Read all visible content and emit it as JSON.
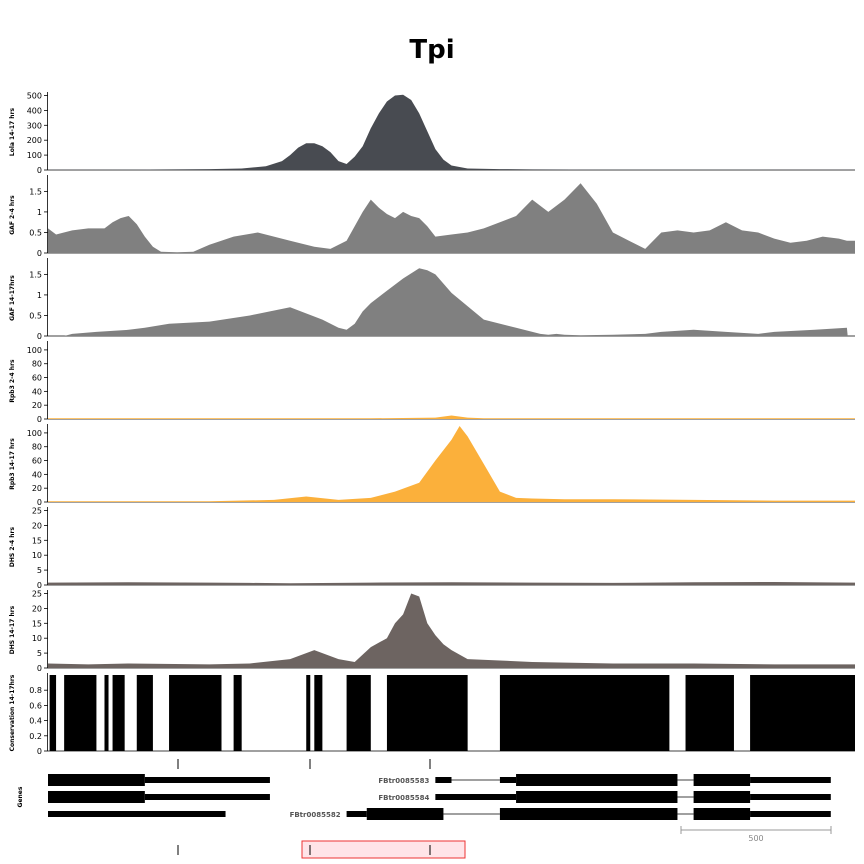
{
  "title": "Tpi",
  "chart_data": {
    "type": "area",
    "title": "Tpi",
    "x_range": [
      0,
      1000
    ],
    "tracks": [
      {
        "name": "Lola 14-17 hrs",
        "color": "#484b51",
        "ylim": [
          0,
          510
        ],
        "yticks": [
          0,
          100,
          200,
          300,
          400,
          500
        ],
        "x": [
          0,
          100,
          200,
          240,
          270,
          290,
          300,
          310,
          320,
          330,
          340,
          350,
          360,
          370,
          380,
          390,
          400,
          410,
          420,
          430,
          440,
          450,
          460,
          470,
          480,
          490,
          500,
          520,
          560,
          600,
          700,
          800,
          900,
          1000
        ],
        "values": [
          2,
          3,
          6,
          10,
          25,
          60,
          100,
          150,
          180,
          180,
          160,
          120,
          60,
          40,
          90,
          160,
          280,
          380,
          460,
          500,
          505,
          470,
          380,
          260,
          140,
          70,
          30,
          10,
          6,
          4,
          3,
          3,
          2,
          2
        ]
      },
      {
        "name": "GAF 2-4 hrs",
        "color": "#808080",
        "ylim": [
          0,
          1.85
        ],
        "yticks": [
          0,
          0.5,
          1,
          1.5
        ],
        "x": [
          0,
          10,
          30,
          50,
          70,
          80,
          90,
          100,
          110,
          120,
          130,
          140,
          160,
          180,
          200,
          230,
          260,
          300,
          330,
          350,
          370,
          390,
          400,
          410,
          420,
          430,
          440,
          450,
          460,
          470,
          480,
          500,
          520,
          540,
          560,
          580,
          600,
          620,
          640,
          660,
          680,
          700,
          720,
          740,
          760,
          780,
          800,
          820,
          840,
          860,
          880,
          900,
          920,
          940,
          960,
          980,
          990,
          1000
        ],
        "values": [
          0.6,
          0.45,
          0.55,
          0.6,
          0.6,
          0.75,
          0.85,
          0.9,
          0.7,
          0.4,
          0.15,
          0.03,
          0.02,
          0.03,
          0.2,
          0.4,
          0.5,
          0.3,
          0.15,
          0.1,
          0.3,
          1.0,
          1.3,
          1.1,
          0.95,
          0.85,
          1.0,
          0.9,
          0.85,
          0.65,
          0.4,
          0.45,
          0.5,
          0.6,
          0.75,
          0.9,
          1.3,
          1.0,
          1.3,
          1.7,
          1.2,
          0.5,
          0.3,
          0.1,
          0.5,
          0.55,
          0.5,
          0.55,
          0.75,
          0.55,
          0.5,
          0.35,
          0.25,
          0.3,
          0.4,
          0.35,
          0.3,
          0.3
        ]
      },
      {
        "name": "GAF 14-17hrs",
        "color": "#808080",
        "ylim": [
          0,
          1.85
        ],
        "yticks": [
          0,
          0.5,
          1,
          1.5
        ],
        "x": [
          0,
          20,
          30,
          60,
          100,
          120,
          150,
          200,
          250,
          300,
          340,
          360,
          370,
          380,
          390,
          400,
          420,
          440,
          460,
          470,
          480,
          500,
          540,
          580,
          610,
          620,
          630,
          640,
          660,
          700,
          740,
          760,
          800,
          840,
          880,
          900,
          950,
          990,
          991,
          1000
        ],
        "values": [
          0,
          0,
          0.05,
          0.1,
          0.15,
          0.2,
          0.3,
          0.35,
          0.5,
          0.7,
          0.4,
          0.2,
          0.15,
          0.3,
          0.6,
          0.8,
          1.1,
          1.4,
          1.65,
          1.6,
          1.5,
          1.05,
          0.4,
          0.2,
          0.05,
          0.03,
          0.05,
          0.03,
          0.02,
          0.03,
          0.05,
          0.1,
          0.15,
          0.1,
          0.05,
          0.1,
          0.15,
          0.2,
          0,
          0
        ]
      },
      {
        "name": "Rpb3 2-4 hrs",
        "color": "#fbb03b",
        "ylim": [
          0,
          110
        ],
        "yticks": [
          0,
          20,
          40,
          60,
          80,
          100
        ],
        "x": [
          0,
          400,
          480,
          500,
          520,
          540,
          600,
          800,
          1000
        ],
        "values": [
          1,
          1,
          2,
          5,
          2,
          1,
          1,
          1,
          1
        ]
      },
      {
        "name": "Rpb3 14-17 hrs",
        "color": "#fbb03b",
        "ylim": [
          0,
          110
        ],
        "yticks": [
          0,
          20,
          40,
          60,
          80,
          100
        ],
        "x": [
          0,
          200,
          280,
          320,
          360,
          400,
          430,
          460,
          480,
          500,
          510,
          520,
          540,
          560,
          580,
          600,
          640,
          700,
          800,
          900,
          1000
        ],
        "values": [
          1,
          1,
          3,
          8,
          3,
          6,
          15,
          28,
          60,
          90,
          110,
          95,
          55,
          15,
          6,
          5,
          4,
          4,
          3,
          2,
          2
        ]
      },
      {
        "name": "DHS 2-4 hrs",
        "color": "#6d6461",
        "ylim": [
          0,
          25.5
        ],
        "yticks": [
          0,
          5,
          10,
          15,
          20,
          25
        ],
        "x": [
          0,
          100,
          200,
          250,
          300,
          400,
          500,
          600,
          700,
          800,
          900,
          1000
        ],
        "values": [
          0.8,
          0.9,
          0.8,
          0.7,
          0.6,
          0.8,
          0.9,
          0.8,
          0.7,
          0.9,
          1.0,
          0.8
        ]
      },
      {
        "name": "DHS 14-17 hrs",
        "color": "#6d6461",
        "ylim": [
          0,
          25.5
        ],
        "yticks": [
          0,
          5,
          10,
          15,
          20,
          25
        ],
        "x": [
          0,
          50,
          100,
          200,
          250,
          300,
          330,
          360,
          380,
          400,
          420,
          430,
          440,
          450,
          460,
          470,
          480,
          490,
          500,
          520,
          560,
          600,
          700,
          800,
          900,
          1000
        ],
        "values": [
          1.5,
          1.2,
          1.5,
          1.2,
          1.5,
          3,
          6,
          3,
          2,
          7,
          10,
          15,
          18,
          25,
          24,
          15,
          11,
          8,
          6,
          3,
          2.5,
          2,
          1.5,
          1.5,
          1.2,
          1.2
        ]
      },
      {
        "name": "Conservation 14-17hrs",
        "color": "#000000",
        "ylim": [
          0,
          1.0
        ],
        "yticks": [
          0,
          0.2,
          0.4,
          0.6,
          0.8
        ],
        "blocks": [
          [
            2,
            10
          ],
          [
            20,
            60
          ],
          [
            70,
            75
          ],
          [
            80,
            95
          ],
          [
            110,
            130
          ],
          [
            150,
            215
          ],
          [
            230,
            240
          ],
          [
            320,
            325
          ],
          [
            330,
            340
          ],
          [
            370,
            400
          ],
          [
            420,
            520
          ],
          [
            560,
            770
          ],
          [
            790,
            850
          ],
          [
            870,
            1000
          ]
        ]
      }
    ],
    "genes": {
      "label": "Genes",
      "transcripts": [
        {
          "name": "",
          "segments": [
            [
              0,
              120,
              "thick"
            ],
            [
              120,
              275,
              "thin"
            ]
          ]
        },
        {
          "name": "",
          "segments": [
            [
              0,
              120,
              "thick"
            ],
            [
              120,
              275,
              "thin"
            ]
          ]
        },
        {
          "name": "",
          "segments": [
            [
              0,
              220,
              "thin"
            ]
          ]
        },
        {
          "name": "FBtr0085583",
          "segments": [
            [
              480,
              500,
              "thin"
            ],
            [
              500,
              560,
              "line"
            ],
            [
              560,
              580,
              "thin"
            ],
            [
              580,
              780,
              "thick"
            ],
            [
              780,
              800,
              "line"
            ],
            [
              800,
              870,
              "thick"
            ],
            [
              870,
              970,
              "thin"
            ]
          ]
        },
        {
          "name": "FBtr0085584",
          "segments": [
            [
              480,
              580,
              "thin"
            ],
            [
              580,
              780,
              "thick"
            ],
            [
              780,
              800,
              "line"
            ],
            [
              800,
              870,
              "thick"
            ],
            [
              870,
              970,
              "thin"
            ]
          ]
        },
        {
          "name": "FBtr0085582",
          "segments": [
            [
              370,
              395,
              "thin"
            ],
            [
              395,
              490,
              "thick"
            ],
            [
              490,
              560,
              "line"
            ],
            [
              560,
              780,
              "thick"
            ],
            [
              780,
              800,
              "line"
            ],
            [
              800,
              870,
              "thick"
            ],
            [
              870,
              970,
              "thin"
            ]
          ]
        }
      ],
      "scale_bar": {
        "label": "500"
      }
    }
  }
}
